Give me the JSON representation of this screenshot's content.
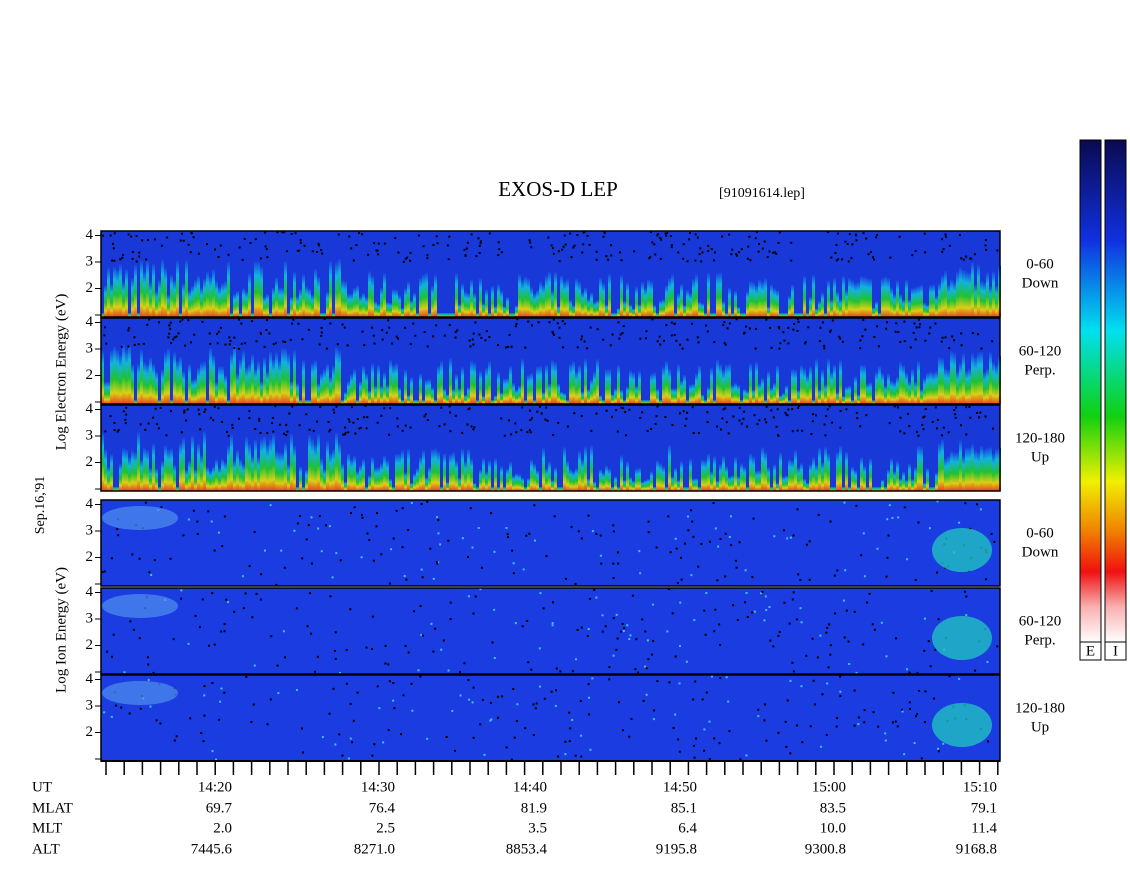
{
  "title": "EXOS-D LEP",
  "file": "[91091614.lep]",
  "date": "Sep.16,'91",
  "electron_axis_label": "Log Electron Energy (eV)",
  "ion_axis_label": "Log Ion Energy (eV)",
  "panel_yticks": [
    "2",
    "3",
    "4"
  ],
  "panels": [
    {
      "species": "electron",
      "angle": "0-60",
      "direction": "Down"
    },
    {
      "species": "electron",
      "angle": "60-120",
      "direction": "Perp."
    },
    {
      "species": "electron",
      "angle": "120-180",
      "direction": "Up"
    },
    {
      "species": "ion",
      "angle": "0-60",
      "direction": "Down"
    },
    {
      "species": "ion",
      "angle": "60-120",
      "direction": "Perp."
    },
    {
      "species": "ion",
      "angle": "120-180",
      "direction": "Up"
    }
  ],
  "ephemeris": {
    "row_labels": [
      "UT",
      "MLAT",
      "MLT",
      "ALT"
    ],
    "columns": [
      [
        "14:20",
        "69.7",
        "2.0",
        "7445.6"
      ],
      [
        "14:30",
        "76.4",
        "2.5",
        "8271.0"
      ],
      [
        "14:40",
        "81.9",
        "3.5",
        "8853.4"
      ],
      [
        "14:50",
        "85.1",
        "6.4",
        "9195.8"
      ],
      [
        "15:00",
        "83.5",
        "10.0",
        "9300.8"
      ],
      [
        "15:10",
        "79.1",
        "11.4",
        "9168.8"
      ]
    ]
  },
  "colorbar_labels": [
    "E",
    "I"
  ]
}
